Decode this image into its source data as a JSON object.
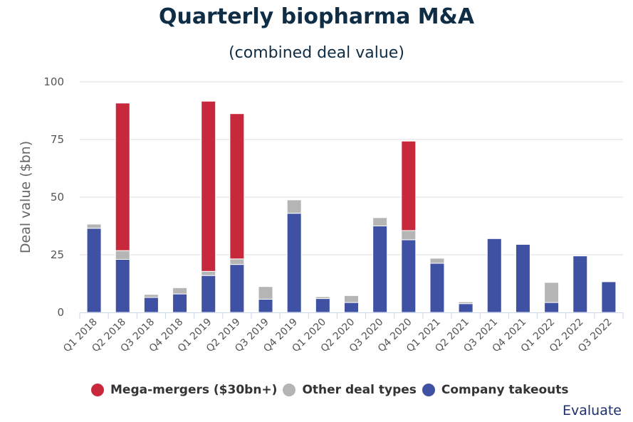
{
  "header": {
    "title": "Quarterly biopharma M&A",
    "subtitle": "(combined deal value)"
  },
  "brand": "Evaluate",
  "colors": {
    "mega": "#c8283c",
    "other": "#b5b5b5",
    "takeouts": "#3f51a3",
    "grid": "#dddddd",
    "axis": "#ccd6eb"
  },
  "chart_data": {
    "type": "bar",
    "stacked": true,
    "title": "Quarterly biopharma M&A",
    "subtitle": "(combined deal value)",
    "xlabel": "",
    "ylabel": "Deal value ($bn)",
    "ylim": [
      0,
      100
    ],
    "yticks": [
      0,
      25,
      50,
      75,
      100
    ],
    "grid": true,
    "legend_position": "bottom",
    "categories": [
      "Q1 2018",
      "Q2 2018",
      "Q3 2018",
      "Q4 2018",
      "Q1 2019",
      "Q2 2019",
      "Q3 2019",
      "Q4 2019",
      "Q1 2020",
      "Q2 2020",
      "Q3 2020",
      "Q4 2020",
      "Q1 2021",
      "Q2 2021",
      "Q3 2021",
      "Q4 2021",
      "Q1 2022",
      "Q2 2022",
      "Q3 2022"
    ],
    "series": [
      {
        "name": "Company takeouts",
        "color": "#3f51a3",
        "values": [
          36.5,
          23.0,
          6.5,
          8.0,
          16.0,
          20.8,
          5.7,
          43.0,
          6.0,
          4.3,
          37.5,
          31.5,
          21.3,
          3.8,
          32.0,
          29.5,
          4.3,
          24.5,
          13.3
        ]
      },
      {
        "name": "Other deal types",
        "color": "#b5b5b5",
        "values": [
          1.8,
          3.8,
          1.3,
          2.7,
          1.8,
          2.4,
          5.5,
          5.8,
          0.8,
          3.0,
          3.6,
          4.0,
          2.2,
          0.8,
          0.0,
          0.0,
          8.7,
          0.0,
          0.0
        ]
      },
      {
        "name": "Mega-mergers ($30bn+)",
        "color": "#c8283c",
        "values": [
          0,
          64.0,
          0,
          0,
          73.8,
          63.0,
          0,
          0,
          0,
          0,
          0,
          38.8,
          0,
          0,
          0,
          0,
          0,
          0,
          0
        ]
      }
    ]
  },
  "legend": [
    {
      "label": "Mega-mergers ($30bn+)",
      "color": "#c8283c"
    },
    {
      "label": "Other deal types",
      "color": "#b5b5b5"
    },
    {
      "label": "Company takeouts",
      "color": "#3f51a3"
    }
  ]
}
